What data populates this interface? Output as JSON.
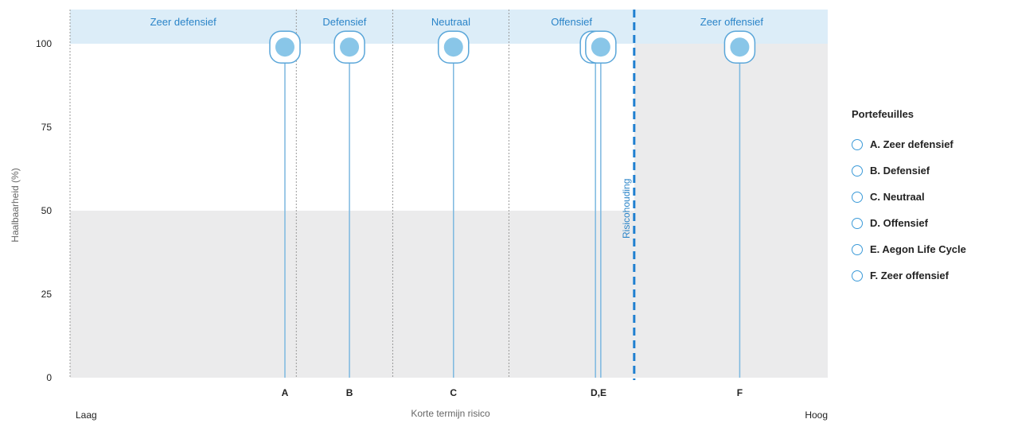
{
  "chart_data": {
    "type": "scatter",
    "title": "",
    "ylabel": "Haalbaarheid (%)",
    "xlabel": "Korte termijn risico",
    "x_low_label": "Laag",
    "x_high_label": "Hoog",
    "ylim": [
      0,
      100
    ],
    "yticks": [
      "0",
      "25",
      "50",
      "75",
      "100"
    ],
    "xlim": [
      0,
      100
    ],
    "zones": [
      {
        "label": "Zeer defensief",
        "from": 0,
        "to": 29.8
      },
      {
        "label": "Defensief",
        "from": 29.8,
        "to": 42.5
      },
      {
        "label": "Neutraal",
        "from": 42.5,
        "to": 57.8
      },
      {
        "label": "Offensief",
        "from": 57.8,
        "to": 74.3
      },
      {
        "label": "Zeer offensief",
        "from": 74.3,
        "to": 100
      }
    ],
    "risk_threshold": {
      "label": "Risicohouding",
      "x": 74.3
    },
    "points": [
      {
        "id": "A",
        "x": 28.3,
        "y": 99
      },
      {
        "id": "B",
        "x": 36.8,
        "y": 99
      },
      {
        "id": "C",
        "x": 50.5,
        "y": 99
      },
      {
        "id": "D",
        "x": 69.2,
        "y": 99
      },
      {
        "id": "E",
        "x": 69.9,
        "y": 99
      },
      {
        "id": "F",
        "x": 88.2,
        "y": 99
      }
    ],
    "x_tick_labels": [
      {
        "label": "A",
        "x": 28.3
      },
      {
        "label": "B",
        "x": 36.8
      },
      {
        "label": "C",
        "x": 50.5
      },
      {
        "label": "D,E",
        "x": 69.6
      },
      {
        "label": "F",
        "x": 88.2
      }
    ],
    "shaded_regions": [
      {
        "x_from": 0,
        "x_to": 74.3,
        "y_from": 0,
        "y_to": 50
      },
      {
        "x_from": 74.3,
        "x_to": 100,
        "y_from": 0,
        "y_to": 100
      }
    ],
    "legend": {
      "title": "Portefeuilles",
      "placement": "right",
      "items": [
        "A. Zeer defensief",
        "B. Defensief",
        "C. Neutraal",
        "D. Offensief",
        "E. Aegon Life Cycle",
        "F. Zeer offensief"
      ]
    },
    "colors": {
      "accent": "#3b9ad8",
      "point_fill": "#7cc0e6",
      "zone_band": "#dcedf8",
      "shade": "#ebebec",
      "text": "#222222",
      "muted": "#666666"
    }
  }
}
